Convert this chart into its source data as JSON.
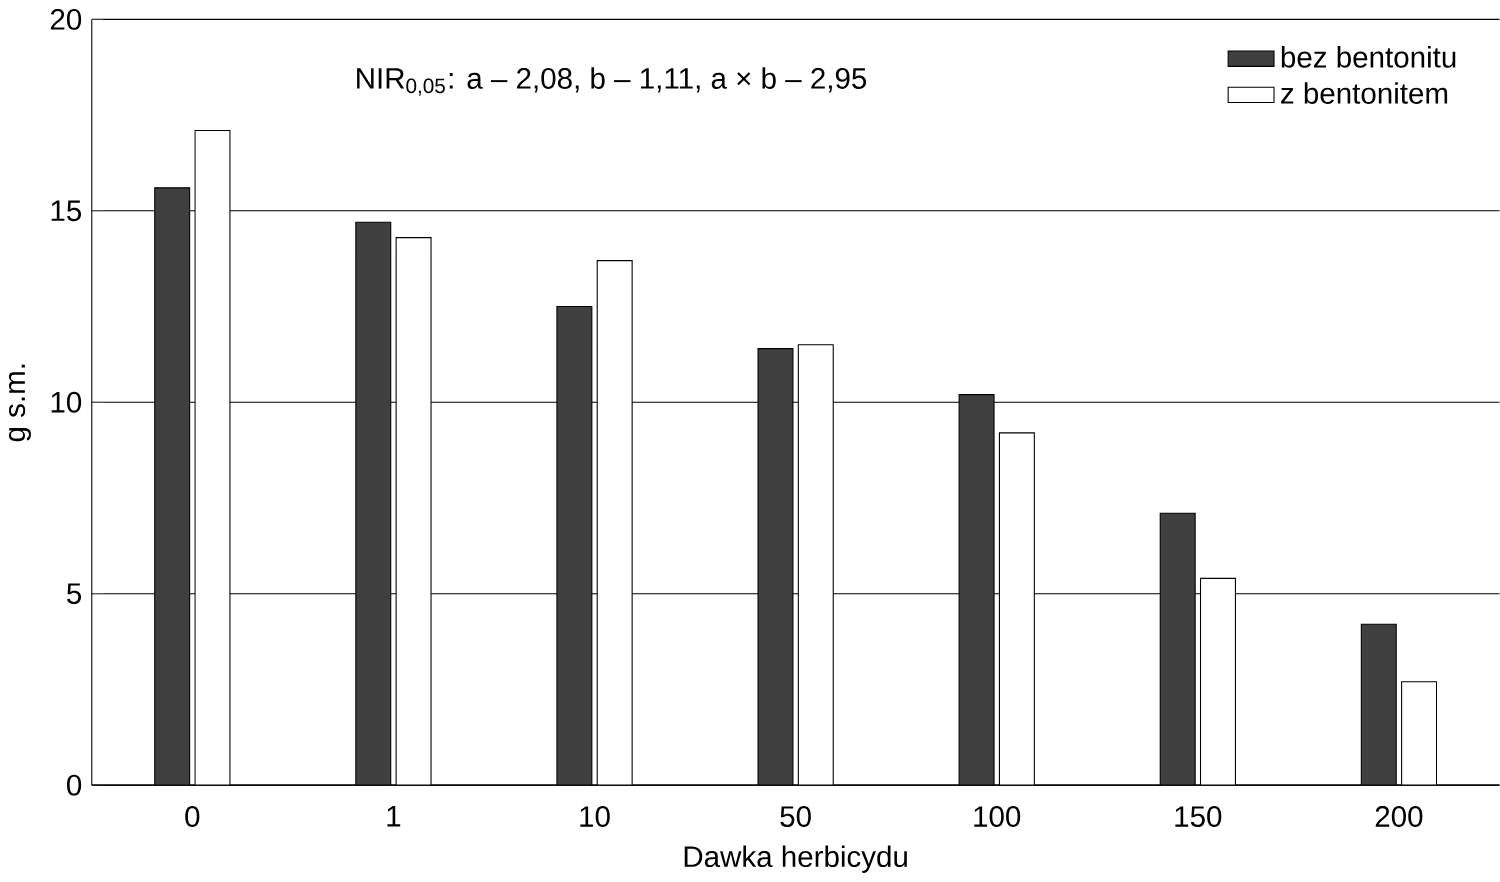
{
  "chart_data": {
    "type": "bar",
    "xlabel": "Dawka herbicydu",
    "ylabel": "g s.m.",
    "categories": [
      "0",
      "1",
      "10",
      "50",
      "100",
      "150",
      "200"
    ],
    "series": [
      {
        "name": "bez bentonitu",
        "color": "#404040",
        "values": [
          15.6,
          14.7,
          12.5,
          11.4,
          10.2,
          7.1,
          4.2
        ]
      },
      {
        "name": "z bentonitem",
        "color": "#ffffff",
        "values": [
          17.1,
          14.3,
          13.7,
          11.5,
          9.2,
          5.4,
          2.7
        ]
      }
    ],
    "ylim": [
      0,
      20
    ],
    "yticks": [
      0,
      5,
      10,
      15,
      20
    ],
    "grid": "y",
    "legend": "top right",
    "annotations": [
      "NIR$_{0,05}$: a – 2,08, b – 1,11, a × b – 2,95"
    ]
  }
}
